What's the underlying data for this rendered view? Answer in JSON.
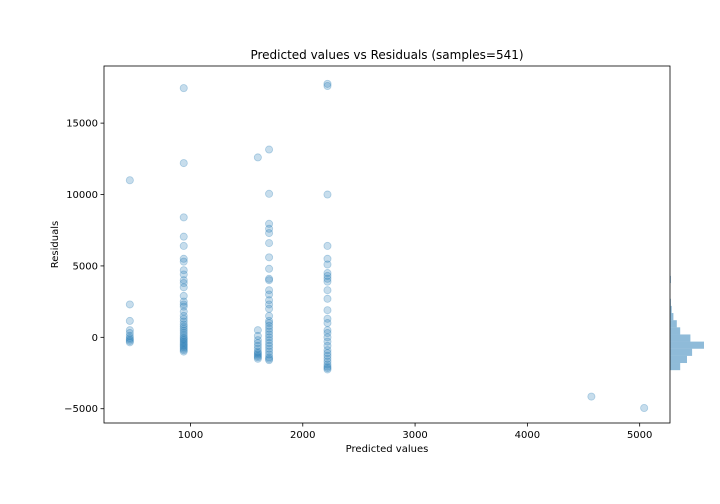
{
  "chart_data": {
    "type": "scatter",
    "title": "Predicted values vs Residuals (samples=541)",
    "xlabel": "Predicted values",
    "ylabel": "Residuals",
    "xlim": [
      230,
      5270
    ],
    "ylim": [
      -6000,
      19000
    ],
    "x_ticks": [
      1000,
      2000,
      3000,
      4000,
      5000
    ],
    "y_ticks": [
      -5000,
      0,
      5000,
      10000,
      15000
    ],
    "x_tick_labels": [
      "1000",
      "2000",
      "3000",
      "4000",
      "5000"
    ],
    "y_tick_labels": [
      "−5000",
      "0",
      "5000",
      "10000",
      "15000"
    ],
    "grid": false,
    "color": "#1f77b4",
    "point_alpha": 0.25,
    "series": [
      {
        "points": [
          [
            460,
            11000
          ],
          [
            460,
            2300
          ],
          [
            460,
            1150
          ],
          [
            460,
            500
          ],
          [
            460,
            300
          ],
          [
            460,
            100
          ],
          [
            460,
            -50
          ],
          [
            460,
            -150
          ],
          [
            460,
            -250
          ],
          [
            460,
            -350
          ],
          [
            940,
            17450
          ],
          [
            940,
            12200
          ],
          [
            940,
            8400
          ],
          [
            940,
            7050
          ],
          [
            940,
            6400
          ],
          [
            940,
            5500
          ],
          [
            940,
            5300
          ],
          [
            940,
            4700
          ],
          [
            940,
            4400
          ],
          [
            940,
            4000
          ],
          [
            940,
            3800
          ],
          [
            940,
            3500
          ],
          [
            940,
            2900
          ],
          [
            940,
            2500
          ],
          [
            940,
            2300
          ],
          [
            940,
            2150
          ],
          [
            940,
            1800
          ],
          [
            940,
            1500
          ],
          [
            940,
            1300
          ],
          [
            940,
            1100
          ],
          [
            940,
            900
          ],
          [
            940,
            750
          ],
          [
            940,
            600
          ],
          [
            940,
            450
          ],
          [
            940,
            300
          ],
          [
            940,
            150
          ],
          [
            940,
            0
          ],
          [
            940,
            -100
          ],
          [
            940,
            -200
          ],
          [
            940,
            -300
          ],
          [
            940,
            -400
          ],
          [
            940,
            -500
          ],
          [
            940,
            -600
          ],
          [
            940,
            -700
          ],
          [
            940,
            -800
          ],
          [
            940,
            -900
          ],
          [
            940,
            -1000
          ],
          [
            1600,
            12600
          ],
          [
            1600,
            500
          ],
          [
            1600,
            100
          ],
          [
            1600,
            -200
          ],
          [
            1600,
            -400
          ],
          [
            1600,
            -600
          ],
          [
            1600,
            -800
          ],
          [
            1600,
            -1000
          ],
          [
            1600,
            -1100
          ],
          [
            1600,
            -1200
          ],
          [
            1600,
            -1300
          ],
          [
            1600,
            -1400
          ],
          [
            1600,
            -1500
          ],
          [
            1700,
            13150
          ],
          [
            1700,
            10050
          ],
          [
            1700,
            7950
          ],
          [
            1700,
            7600
          ],
          [
            1700,
            7300
          ],
          [
            1700,
            6600
          ],
          [
            1700,
            5600
          ],
          [
            1700,
            4800
          ],
          [
            1700,
            4100
          ],
          [
            1700,
            4000
          ],
          [
            1700,
            3300
          ],
          [
            1700,
            3000
          ],
          [
            1700,
            2600
          ],
          [
            1700,
            2300
          ],
          [
            1700,
            2000
          ],
          [
            1700,
            1500
          ],
          [
            1700,
            1150
          ],
          [
            1700,
            1000
          ],
          [
            1700,
            800
          ],
          [
            1700,
            600
          ],
          [
            1700,
            400
          ],
          [
            1700,
            200
          ],
          [
            1700,
            0
          ],
          [
            1700,
            -200
          ],
          [
            1700,
            -400
          ],
          [
            1700,
            -600
          ],
          [
            1700,
            -800
          ],
          [
            1700,
            -1000
          ],
          [
            1700,
            -1200
          ],
          [
            1700,
            -1400
          ],
          [
            1700,
            -1500
          ],
          [
            1700,
            -1600
          ],
          [
            2220,
            17750
          ],
          [
            2220,
            17600
          ],
          [
            2220,
            10000
          ],
          [
            2220,
            6400
          ],
          [
            2220,
            5500
          ],
          [
            2220,
            5100
          ],
          [
            2220,
            4500
          ],
          [
            2220,
            4300
          ],
          [
            2220,
            4100
          ],
          [
            2220,
            3900
          ],
          [
            2220,
            3300
          ],
          [
            2220,
            2700
          ],
          [
            2220,
            1900
          ],
          [
            2220,
            1300
          ],
          [
            2220,
            1000
          ],
          [
            2220,
            500
          ],
          [
            2220,
            300
          ],
          [
            2220,
            0
          ],
          [
            2220,
            -300
          ],
          [
            2220,
            -600
          ],
          [
            2220,
            -900
          ],
          [
            2220,
            -1100
          ],
          [
            2220,
            -1300
          ],
          [
            2220,
            -1500
          ],
          [
            2220,
            -1700
          ],
          [
            2220,
            -1900
          ],
          [
            2220,
            -2050
          ],
          [
            2220,
            -2150
          ],
          [
            2220,
            -2250
          ],
          [
            4570,
            -4150
          ],
          [
            5040,
            -4950
          ]
        ]
      }
    ],
    "marginal_histogram": {
      "orientation": "horizontal",
      "side": "right",
      "bins": [
        {
          "y_from": -2300,
          "y_to": -1800,
          "count": 12
        },
        {
          "y_from": -1800,
          "y_to": -1300,
          "count": 20
        },
        {
          "y_from": -1300,
          "y_to": -800,
          "count": 26
        },
        {
          "y_from": -800,
          "y_to": -300,
          "count": 40
        },
        {
          "y_from": -300,
          "y_to": 200,
          "count": 24
        },
        {
          "y_from": 200,
          "y_to": 700,
          "count": 12
        },
        {
          "y_from": 700,
          "y_to": 1200,
          "count": 8
        },
        {
          "y_from": 1200,
          "y_to": 1700,
          "count": 4
        },
        {
          "y_from": 1700,
          "y_to": 2200,
          "count": 2
        },
        {
          "y_from": 2200,
          "y_to": 2700,
          "count": 1
        },
        {
          "y_from": 3800,
          "y_to": 4300,
          "count": 1
        }
      ],
      "color": "#1f77b4",
      "alpha": 0.5
    }
  }
}
